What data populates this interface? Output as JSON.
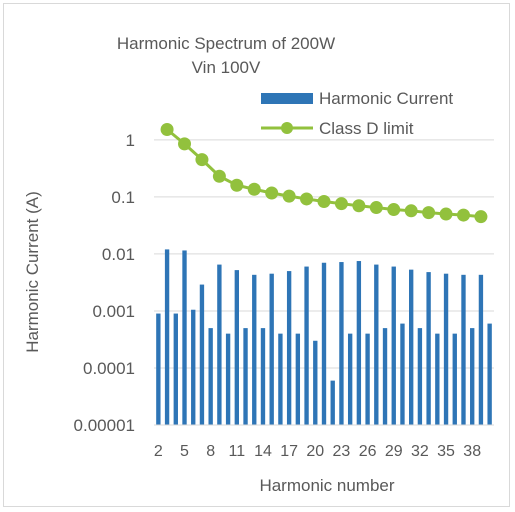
{
  "chart_data": {
    "type": "bar",
    "title": "Harmonic Spectrum  of 200W",
    "subtitle": "Vin 100V",
    "xlabel": "Harmonic number",
    "ylabel": "Harmonic Current  (A)",
    "y_scale": "log",
    "ylim": [
      1e-05,
      5
    ],
    "y_ticks": [
      1e-05,
      0.0001,
      0.001,
      0.01,
      0.1,
      1
    ],
    "y_tick_labels": [
      "0.00001",
      "0.0001",
      "0.001",
      "0.01",
      "0.1",
      "1"
    ],
    "x_tick_labels": [
      "2",
      "5",
      "8",
      "11",
      "14",
      "17",
      "20",
      "23",
      "26",
      "29",
      "32",
      "35",
      "38"
    ],
    "legend_position": "top-right",
    "grid": true,
    "categories": [
      2,
      3,
      4,
      5,
      6,
      7,
      8,
      9,
      10,
      11,
      12,
      13,
      14,
      15,
      16,
      17,
      18,
      19,
      20,
      21,
      22,
      23,
      24,
      25,
      26,
      27,
      28,
      29,
      30,
      31,
      32,
      33,
      34,
      35,
      36,
      37,
      38,
      39,
      40
    ],
    "series": [
      {
        "name": "Harmonic Current",
        "type": "bar",
        "color": "#2e75b6",
        "values": [
          0.0009,
          0.012,
          0.0009,
          0.0115,
          0.00105,
          0.0029,
          0.0005,
          0.0065,
          0.0004,
          0.0052,
          0.0005,
          0.0043,
          0.0005,
          0.0045,
          0.0004,
          0.005,
          0.0004,
          0.006,
          0.0003,
          0.007,
          6e-05,
          0.0072,
          0.0004,
          0.0075,
          0.0004,
          0.0065,
          0.0005,
          0.006,
          0.0006,
          0.0053,
          0.0005,
          0.0048,
          0.0004,
          0.0045,
          0.0004,
          0.0043,
          0.0005,
          0.0043,
          0.0006
        ]
      },
      {
        "name": "Class D limit",
        "type": "line",
        "color": "#92c13d",
        "x": [
          3,
          5,
          7,
          9,
          11,
          13,
          15,
          17,
          19,
          21,
          23,
          25,
          27,
          29,
          31,
          33,
          35,
          37,
          39
        ],
        "values": [
          1.52,
          0.85,
          0.45,
          0.23,
          0.16,
          0.136,
          0.117,
          0.103,
          0.092,
          0.083,
          0.076,
          0.07,
          0.065,
          0.06,
          0.057,
          0.053,
          0.05,
          0.048,
          0.045
        ]
      }
    ]
  }
}
